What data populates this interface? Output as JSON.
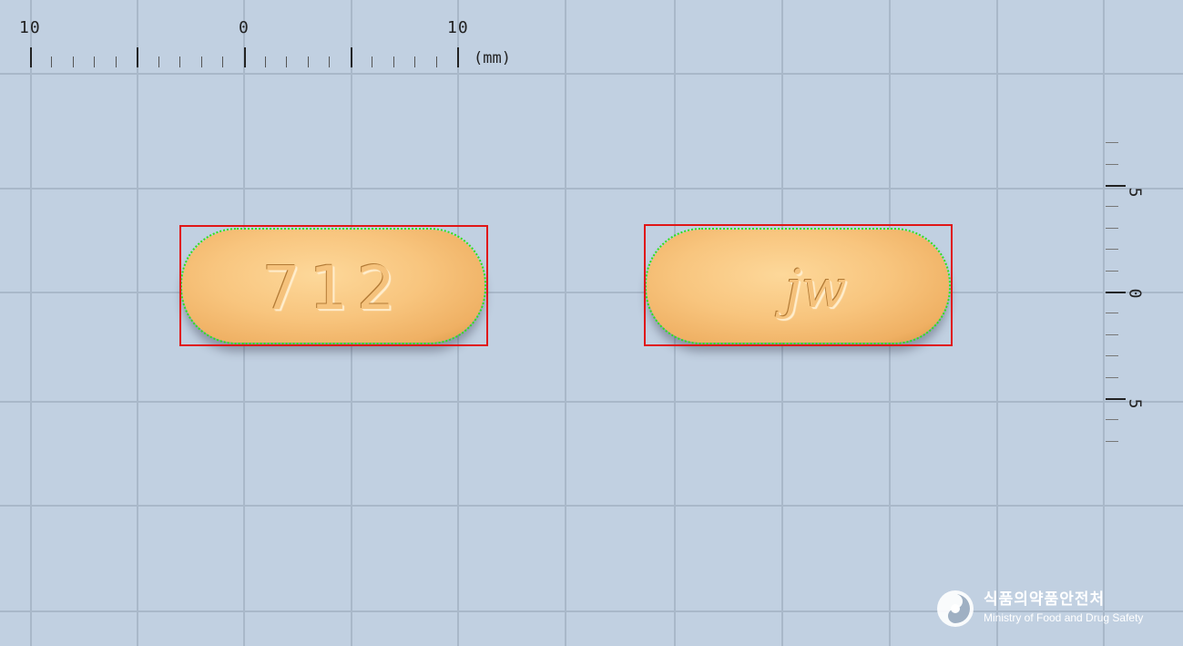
{
  "ruler_top": {
    "labels": [
      "10",
      "0",
      "10"
    ],
    "unit": "(mm)"
  },
  "ruler_right": {
    "labels": [
      "5",
      "0",
      "5"
    ]
  },
  "tablets": [
    {
      "side": "front",
      "imprint": "712",
      "color": "#f8c57e"
    },
    {
      "side": "back",
      "imprint": "jw",
      "color": "#f8c57e"
    }
  ],
  "overlay_colors": {
    "bounding_box": "#e01616",
    "contour": "#2fe01a"
  },
  "background_color": "#c1d0e1",
  "logo": {
    "icon": "ministry-emblem-icon",
    "korean": "식품의약품안전처",
    "english": "Ministry of Food and Drug Safety"
  }
}
